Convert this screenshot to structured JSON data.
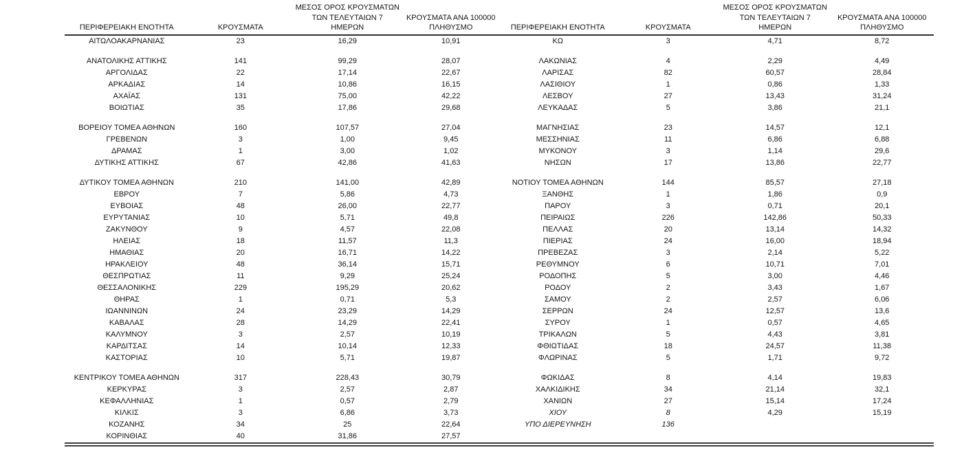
{
  "page": {
    "background": "#ffffff",
    "text_color": "#141414"
  },
  "table": {
    "headers": {
      "region": "ΠΕΡΙΦΕΡΕΙΑΚΗ ΕΝΟΤΗΤΑ",
      "cases": "ΚΡΟΥΣΜΑΤΑ",
      "avg7_lines": [
        "ΜΕΣΟΣ ΟΡΟΣ ΚΡΟΥΣΜΑΤΩΝ",
        "ΤΩΝ ΤΕΛΕΥΤΑΙΩΝ 7",
        "ΗΜΕΡΩΝ"
      ],
      "per100k_lines": [
        "ΚΡΟΥΣΜΑΤΑ ΑΝΑ 100000",
        "ΠΛΗΘΥΣΜΟ"
      ]
    },
    "rows": [
      {
        "l": [
          "ΑΙΤΩΛΟΑΚΑΡΝΑΝΙΑΣ",
          "23",
          "16,29",
          "10,91"
        ],
        "r": [
          "ΚΩ",
          "3",
          "4,71",
          "8,72"
        ]
      },
      {
        "spacer": true
      },
      {
        "l": [
          "ΑΝΑΤΟΛΙΚΗΣ ΑΤΤΙΚΗΣ",
          "141",
          "99,29",
          "28,07"
        ],
        "r": [
          "ΛΑΚΩΝΙΑΣ",
          "4",
          "2,29",
          "4,49"
        ]
      },
      {
        "l": [
          "ΑΡΓΟΛΙΔΑΣ",
          "22",
          "17,14",
          "22,67"
        ],
        "r": [
          "ΛΑΡΙΣΑΣ",
          "82",
          "60,57",
          "28,84"
        ]
      },
      {
        "l": [
          "ΑΡΚΑΔΙΑΣ",
          "14",
          "10,86",
          "16,15"
        ],
        "r": [
          "ΛΑΣΙΘΙΟΥ",
          "1",
          "0,86",
          "1,33"
        ]
      },
      {
        "l": [
          "ΑΧΑΪΑΣ",
          "131",
          "75,00",
          "42,22"
        ],
        "r": [
          "ΛΕΣΒΟΥ",
          "27",
          "13,43",
          "31,24"
        ]
      },
      {
        "l": [
          "ΒΟΙΩΤΙΑΣ",
          "35",
          "17,86",
          "29,68"
        ],
        "r": [
          "ΛΕΥΚΑΔΑΣ",
          "5",
          "3,86",
          "21,1"
        ]
      },
      {
        "spacer": true
      },
      {
        "l": [
          "ΒΟΡΕΙΟΥ ΤΟΜΕΑ ΑΘΗΝΩΝ",
          "160",
          "107,57",
          "27,04"
        ],
        "r": [
          "ΜΑΓΝΗΣΙΑΣ",
          "23",
          "14,57",
          "12,1"
        ]
      },
      {
        "l": [
          "ΓΡΕΒΕΝΩΝ",
          "3",
          "1,00",
          "9,45"
        ],
        "r": [
          "ΜΕΣΣΗΝΙΑΣ",
          "11",
          "6,86",
          "6,88"
        ]
      },
      {
        "l": [
          "ΔΡΑΜΑΣ",
          "1",
          "3,00",
          "1,02"
        ],
        "r": [
          "ΜΥΚΟΝΟΥ",
          "3",
          "1,14",
          "29,6"
        ]
      },
      {
        "l": [
          "ΔΥΤΙΚΗΣ ΑΤΤΙΚΗΣ",
          "67",
          "42,86",
          "41,63"
        ],
        "r": [
          "ΝΗΣΩΝ",
          "17",
          "13,86",
          "22,77"
        ]
      },
      {
        "spacer": true
      },
      {
        "l": [
          "ΔΥΤΙΚΟΥ ΤΟΜΕΑ ΑΘΗΝΩΝ",
          "210",
          "141,00",
          "42,89"
        ],
        "r": [
          "ΝΟΤΙΟΥ ΤΟΜΕΑ ΑΘΗΝΩΝ",
          "144",
          "85,57",
          "27,18"
        ]
      },
      {
        "l": [
          "ΕΒΡΟΥ",
          "7",
          "5,86",
          "4,73"
        ],
        "r": [
          "ΞΑΝΘΗΣ",
          "1",
          "1,86",
          "0,9"
        ]
      },
      {
        "l": [
          "ΕΥΒΟΙΑΣ",
          "48",
          "26,00",
          "22,77"
        ],
        "r": [
          "ΠΑΡΟΥ",
          "3",
          "0,71",
          "20,1"
        ]
      },
      {
        "l": [
          "ΕΥΡΥΤΑΝΙΑΣ",
          "10",
          "5,71",
          "49,8"
        ],
        "r": [
          "ΠΕΙΡΑΙΩΣ",
          "226",
          "142,86",
          "50,33"
        ]
      },
      {
        "l": [
          "ΖΑΚΥΝΘΟΥ",
          "9",
          "4,57",
          "22,08"
        ],
        "r": [
          "ΠΕΛΛΑΣ",
          "20",
          "13,14",
          "14,32"
        ]
      },
      {
        "l": [
          "ΗΛΕΙΑΣ",
          "18",
          "11,57",
          "11,3"
        ],
        "r": [
          "ΠΙΕΡΙΑΣ",
          "24",
          "16,00",
          "18,94"
        ]
      },
      {
        "l": [
          "ΗΜΑΘΙΑΣ",
          "20",
          "16,71",
          "14,22"
        ],
        "r": [
          "ΠΡΕΒΕΖΑΣ",
          "3",
          "2,14",
          "5,22"
        ]
      },
      {
        "l": [
          "ΗΡΑΚΛΕΙΟΥ",
          "48",
          "36,14",
          "15,71"
        ],
        "r": [
          "ΡΕΘΥΜΝΟΥ",
          "6",
          "10,71",
          "7,01"
        ]
      },
      {
        "l": [
          "ΘΕΣΠΡΩΤΙΑΣ",
          "11",
          "9,29",
          "25,24"
        ],
        "r": [
          "ΡΟΔΟΠΗΣ",
          "5",
          "3,00",
          "4,46"
        ]
      },
      {
        "l": [
          "ΘΕΣΣΑΛΟΝΙΚΗΣ",
          "229",
          "195,29",
          "20,62"
        ],
        "r": [
          "ΡΟΔΟΥ",
          "2",
          "3,43",
          "1,67"
        ]
      },
      {
        "l": [
          "ΘΗΡΑΣ",
          "1",
          "0,71",
          "5,3"
        ],
        "r": [
          "ΣΑΜΟΥ",
          "2",
          "2,57",
          "6,06"
        ]
      },
      {
        "l": [
          "ΙΩΑΝΝΙΝΩΝ",
          "24",
          "23,29",
          "14,29"
        ],
        "r": [
          "ΣΕΡΡΩΝ",
          "24",
          "12,57",
          "13,6"
        ]
      },
      {
        "l": [
          "ΚΑΒΑΛΑΣ",
          "28",
          "14,29",
          "22,41"
        ],
        "r": [
          "ΣΥΡΟΥ",
          "1",
          "0,57",
          "4,65"
        ]
      },
      {
        "l": [
          "ΚΑΛΥΜΝΟΥ",
          "3",
          "2,57",
          "10,19"
        ],
        "r": [
          "ΤΡΙΚΑΛΩΝ",
          "5",
          "4,43",
          "3,81"
        ]
      },
      {
        "l": [
          "ΚΑΡΔΙΤΣΑΣ",
          "14",
          "10,14",
          "12,33"
        ],
        "r": [
          "ΦΘΙΩΤΙΔΑΣ",
          "18",
          "24,57",
          "11,38"
        ]
      },
      {
        "l": [
          "ΚΑΣΤΟΡΙΑΣ",
          "10",
          "5,71",
          "19,87"
        ],
        "r": [
          "ΦΛΩΡΙΝΑΣ",
          "5",
          "1,71",
          "9,72"
        ]
      },
      {
        "spacer": true
      },
      {
        "l": [
          "ΚΕΝΤΡΙΚΟΥ ΤΟΜΕΑ ΑΘΗΝΩΝ",
          "317",
          "228,43",
          "30,79"
        ],
        "r": [
          "ΦΩΚΙΔΑΣ",
          "8",
          "4,14",
          "19,83"
        ]
      },
      {
        "l": [
          "ΚΕΡΚΥΡΑΣ",
          "3",
          "2,57",
          "2,87"
        ],
        "r": [
          "ΧΑΛΚΙΔΙΚΗΣ",
          "34",
          "21,14",
          "32,1"
        ]
      },
      {
        "l": [
          "ΚΕΦΑΛΛΗΝΙΑΣ",
          "1",
          "0,57",
          "2,79"
        ],
        "r": [
          "ΧΑΝΙΩΝ",
          "27",
          "15,14",
          "17,24"
        ]
      },
      {
        "l": [
          "ΚΙΛΚΙΣ",
          "3",
          "6,86",
          "3,73"
        ],
        "r": [
          "ΧΙΟΥ",
          "8",
          "4,29",
          "15,19"
        ],
        "ri": true
      },
      {
        "l": [
          "ΚΟΖΑΝΗΣ",
          "34",
          "25",
          "22,64"
        ],
        "r": [
          "ΥΠΟ ΔΙΕΡΕΥΝΗΣΗ",
          "136",
          "",
          ""
        ],
        "ri": true
      },
      {
        "l": [
          "ΚΟΡΙΝΘΙΑΣ",
          "40",
          "31,86",
          "27,57"
        ],
        "r": [
          "",
          "",
          "",
          ""
        ]
      }
    ]
  }
}
